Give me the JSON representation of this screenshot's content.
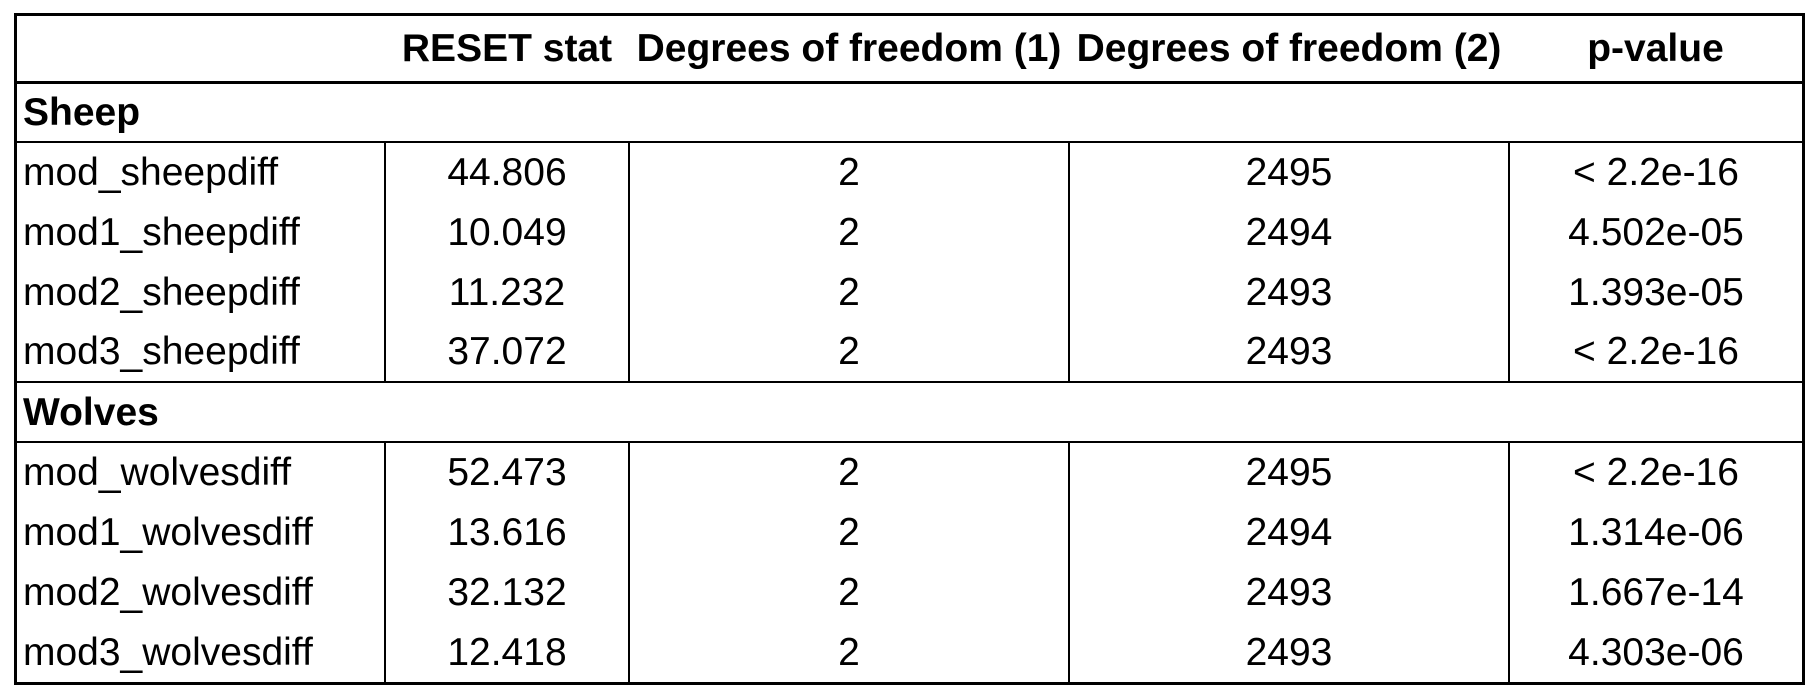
{
  "table": {
    "headers": [
      "",
      "RESET stat",
      "Degrees of freedom (1)",
      "Degrees of freedom (2)",
      "p-value"
    ],
    "groups": [
      {
        "label": "Sheep",
        "rows": [
          [
            "mod_sheepdiff",
            "44.806",
            "2",
            "2495",
            "< 2.2e-16"
          ],
          [
            "mod1_sheepdiff",
            "10.049",
            "2",
            "2494",
            "4.502e-05"
          ],
          [
            "mod2_sheepdiff",
            "11.232",
            "2",
            "2493",
            "1.393e-05"
          ],
          [
            "mod3_sheepdiff",
            "37.072",
            "2",
            "2493",
            "< 2.2e-16"
          ]
        ]
      },
      {
        "label": "Wolves",
        "rows": [
          [
            "mod_wolvesdiff",
            "52.473",
            "2",
            "2495",
            "< 2.2e-16"
          ],
          [
            "mod1_wolvesdiff",
            "13.616",
            "2",
            "2494",
            "1.314e-06"
          ],
          [
            "mod2_wolvesdiff",
            "32.132",
            "2",
            "2493",
            "1.667e-14"
          ],
          [
            "mod3_wolvesdiff",
            "12.418",
            "2",
            "2493",
            "4.303e-06"
          ]
        ]
      }
    ]
  }
}
